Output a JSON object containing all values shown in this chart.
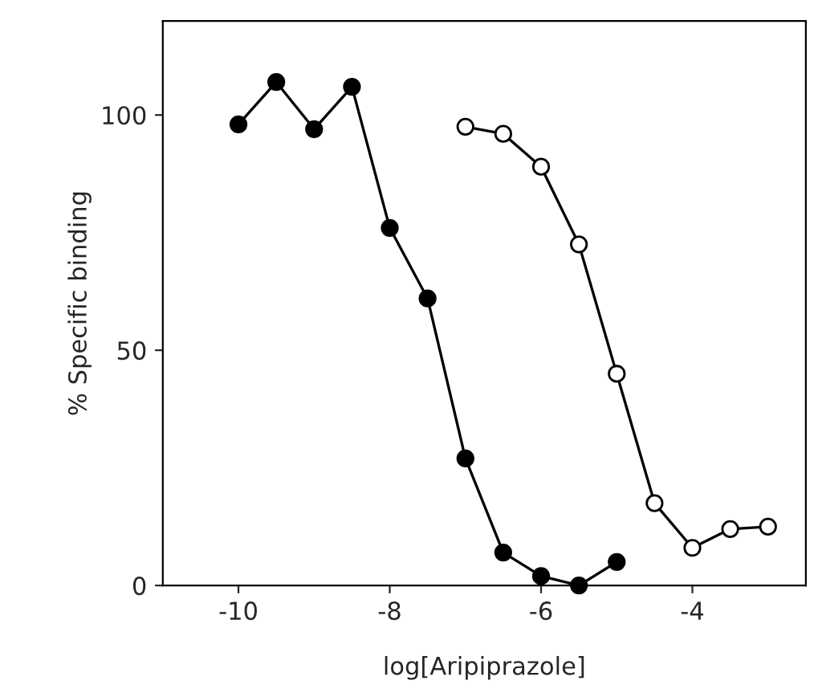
{
  "chart_data": {
    "type": "line",
    "xlabel": "log[Aripiprazole]",
    "ylabel": "% Specific binding",
    "x": [
      -10,
      -9.5,
      -9,
      -8.5,
      -8,
      -7.5,
      -7,
      -6.5,
      -6,
      -5.5,
      -5
    ],
    "series": [
      {
        "color": "#000000",
        "marker": "circle",
        "values": [
          98,
          107,
          97,
          106,
          76,
          61,
          27,
          7,
          2,
          0,
          5
        ]
      },
      {
        "color": "#ffffff",
        "marker": "circle",
        "x": [
          -7,
          -6.5,
          -6,
          -5.5,
          -5,
          -4.5,
          -4,
          -3.5,
          -3
        ],
        "values": [
          97.5,
          96,
          89,
          72.5,
          45,
          17.5,
          8,
          12,
          12.5
        ]
      }
    ],
    "xlim": [
      -11,
      -2.5
    ],
    "ylim": [
      0,
      120
    ],
    "xticks": [
      -10,
      -8,
      -6,
      -4
    ],
    "yticks": [
      0,
      50,
      100
    ],
    "grid": false,
    "legend": false,
    "line_style": "solid"
  }
}
